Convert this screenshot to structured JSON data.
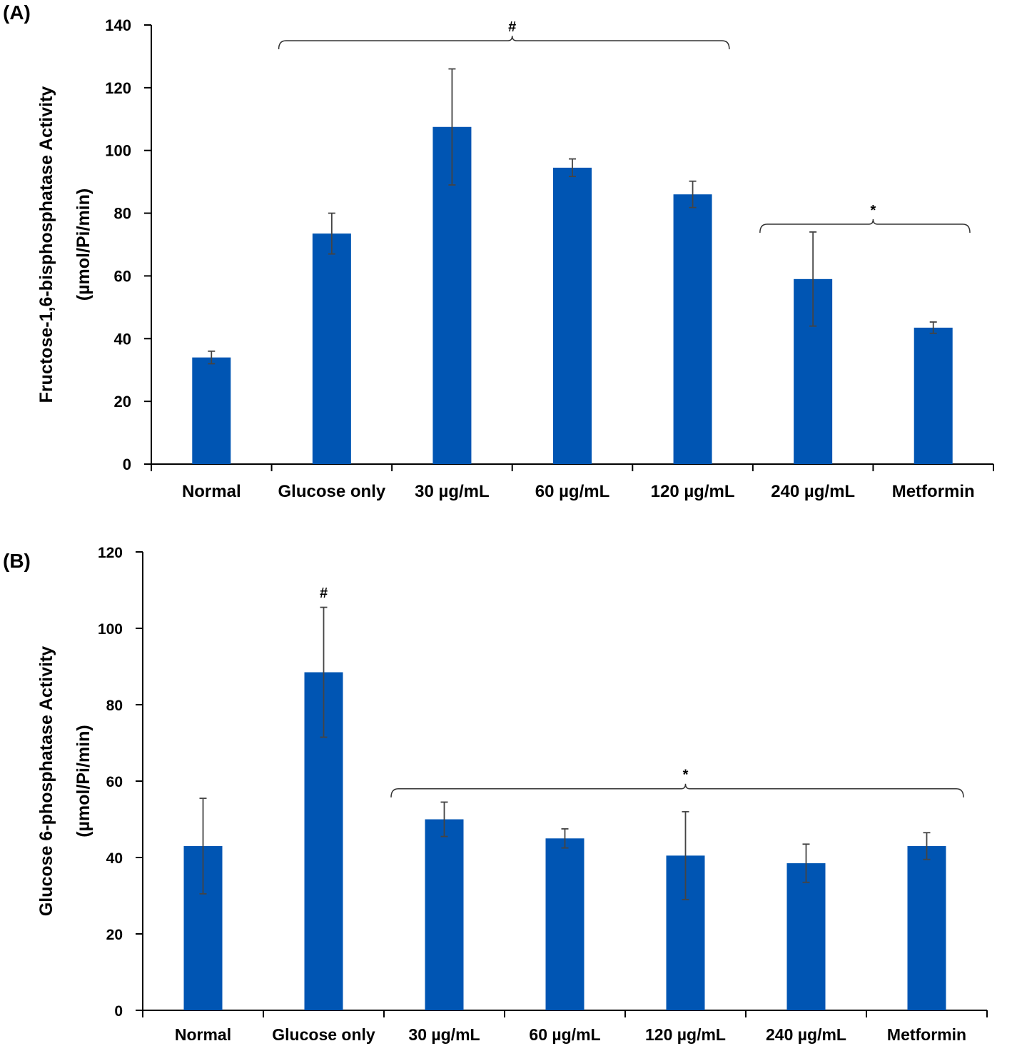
{
  "panels": {
    "a": {
      "label": "(A)"
    },
    "b": {
      "label": "(B)"
    }
  },
  "colors": {
    "bar": "#0055B3",
    "error": "#444444",
    "axis": "#000000"
  },
  "chart_data": [
    {
      "type": "bar",
      "panel": "(A)",
      "title": "",
      "xlabel": "",
      "ylabel": [
        "Fructose-1,6-bisphosphatase Activity",
        "(µmol/Pi/min)"
      ],
      "ylim": [
        0,
        140
      ],
      "yticks": [
        0,
        20,
        40,
        60,
        80,
        100,
        120,
        140
      ],
      "categories": [
        "Normal",
        "Glucose only",
        "30 µg/mL",
        "60 µg/mL",
        "120 µg/mL",
        "240 µg/mL",
        "Metformin"
      ],
      "values": [
        34,
        73.5,
        107.5,
        94.5,
        86,
        59,
        43.5
      ],
      "errors": [
        2,
        6.5,
        18.5,
        2.8,
        4.2,
        15,
        1.8
      ],
      "annotations": [
        {
          "text": "#",
          "from": 1,
          "to": 4,
          "y": 135
        },
        {
          "text": "*",
          "from": 5,
          "to": 6,
          "y": 76.5
        }
      ]
    },
    {
      "type": "bar",
      "panel": "(B)",
      "title": "",
      "xlabel": "",
      "ylabel": [
        "Glucose 6-phosphatase Activity",
        "(µmol/Pi/min)"
      ],
      "ylim": [
        0,
        120
      ],
      "yticks": [
        0,
        20,
        40,
        60,
        80,
        100,
        120
      ],
      "categories": [
        "Normal",
        "Glucose only",
        "30 µg/mL",
        "60 µg/mL",
        "120 µg/mL",
        "240 µg/mL",
        "Metformin"
      ],
      "values": [
        43,
        88.5,
        50,
        45,
        40.5,
        38.5,
        43
      ],
      "errors": [
        12.5,
        17,
        4.5,
        2.5,
        11.5,
        5,
        3.5
      ],
      "annotations": [
        {
          "text": "#",
          "from": 1,
          "to": 1,
          "y": 108
        },
        {
          "text": "*",
          "from": 2,
          "to": 6,
          "y": 58
        }
      ]
    }
  ]
}
